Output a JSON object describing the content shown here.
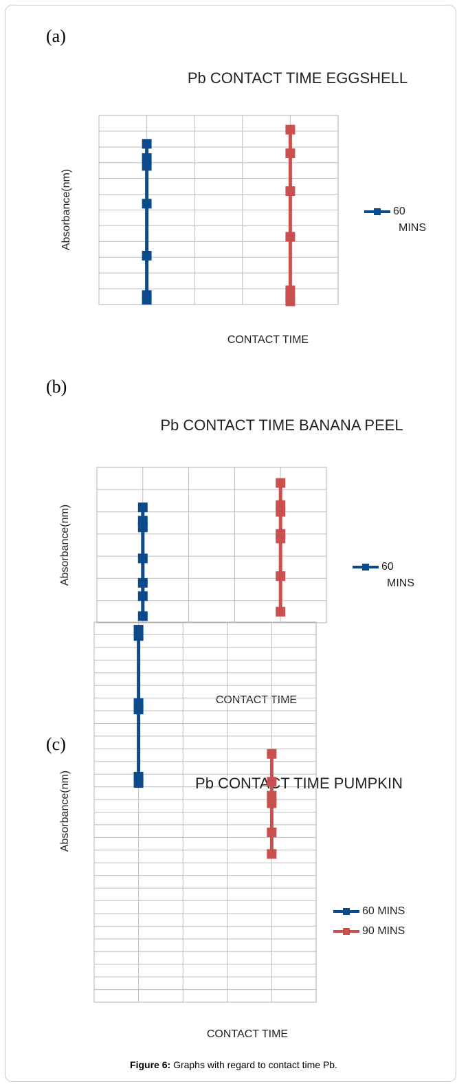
{
  "charts": [
    {
      "type": "line",
      "panel": "(a)",
      "title": "Pb CONTACT TIME EGGSHELL",
      "y_label": "Absorbance(nm)",
      "x_label": "CONTACT TIME",
      "xlim": [
        0,
        5
      ],
      "xticks": [
        0,
        1,
        2,
        3,
        4,
        5
      ],
      "ylim": [
        0,
        12
      ],
      "yticks": [
        0,
        1,
        2,
        3,
        4,
        5,
        6,
        7,
        8,
        9,
        10,
        11,
        12
      ],
      "grid": true,
      "series": [
        {
          "name": "60 MINS",
          "color": "#0b4b8c",
          "x": [
            1,
            1,
            1,
            1,
            1,
            1,
            1
          ],
          "values": [
            10.2,
            9.3,
            8.8,
            6.4,
            3.1,
            0.6,
            0.3
          ]
        },
        {
          "color": "#c9504f",
          "x": [
            4,
            4,
            4,
            4,
            4,
            4,
            4
          ],
          "values": [
            11.1,
            9.6,
            7.2,
            4.3,
            0.9,
            0.5,
            0.2
          ]
        }
      ]
    },
    {
      "type": "line",
      "panel": "(b)",
      "title": "Pb CONTACT TIME BANANA PEEL",
      "y_label": "Absorbance(nm)",
      "x_label": "CONTACT TIME",
      "xlim": [
        0,
        5
      ],
      "xticks": [
        0,
        1,
        2,
        3,
        4,
        5
      ],
      "ylim": [
        0,
        7
      ],
      "yticks": [
        0,
        1,
        2,
        3,
        4,
        5,
        6,
        7
      ],
      "grid": true,
      "series": [
        {
          "name": "60 MINS",
          "color": "#0b4b8c",
          "x": [
            1,
            1,
            1,
            1,
            1,
            1,
            1
          ],
          "values": [
            5.2,
            4.6,
            4.3,
            2.9,
            1.8,
            1.2,
            0.3
          ]
        },
        {
          "color": "#c9504f",
          "x": [
            4,
            4,
            4,
            4,
            4,
            4,
            4
          ],
          "values": [
            6.3,
            5.3,
            5.0,
            4.0,
            3.8,
            2.1,
            0.5
          ]
        }
      ]
    },
    {
      "type": "line",
      "panel": "(c)",
      "title": "Pb CONTACT TIME PUMPKIN",
      "y_label": "Absorbance(nm)",
      "x_label": "CONTACT TIME",
      "xlim": [
        0,
        5
      ],
      "xticks": [
        0,
        1,
        2,
        3,
        4,
        5
      ],
      "ylim": [
        0,
        30
      ],
      "yticks": [
        0,
        1,
        2,
        3,
        4,
        5,
        6,
        7,
        8,
        9,
        10,
        11,
        12,
        13,
        14,
        15,
        16,
        17,
        18,
        19,
        20,
        21,
        22,
        23,
        24,
        25,
        26,
        27,
        28,
        29,
        30
      ],
      "grid": true,
      "series": [
        {
          "name": "60 MINS",
          "color": "#0b4b8c",
          "x": [
            1,
            1,
            1,
            1,
            1,
            1
          ],
          "values": [
            29.4,
            28.9,
            23.6,
            23.1,
            17.8,
            17.3
          ]
        },
        {
          "name": "90 MINS",
          "color": "#c9504f",
          "x": [
            4,
            4,
            4,
            4,
            4,
            4
          ],
          "values": [
            19.6,
            17.4,
            16.3,
            15.7,
            13.4,
            11.7
          ]
        }
      ]
    }
  ],
  "caption": {
    "label": "Figure 6:",
    "text": "Graphs with regard to contact time Pb."
  }
}
